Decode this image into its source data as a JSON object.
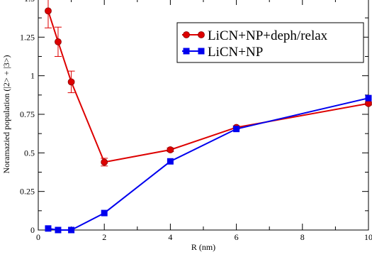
{
  "chart_data": {
    "type": "line",
    "title": "",
    "xlabel": "R (nm)",
    "ylabel": "Noramazied population (|2> + |3>)",
    "xlim": [
      0,
      10
    ],
    "ylim": [
      0,
      1.5
    ],
    "xticks": [
      "0",
      "2",
      "4",
      "6",
      "8",
      "10"
    ],
    "yticks": [
      "0",
      "0.25",
      "0.5",
      "0.75",
      "1",
      "1.25",
      "1.5"
    ],
    "grid": false,
    "legend_position": "top-right",
    "series": [
      {
        "name": "LiCN+NP+deph/relax",
        "color": "#dd0000",
        "marker": "circle",
        "x": [
          0.3,
          0.6,
          1.0,
          2.0,
          4.0,
          6.0,
          10.0
        ],
        "y": [
          1.42,
          1.22,
          0.96,
          0.44,
          0.52,
          0.665,
          0.82
        ],
        "err": [
          0.11,
          0.095,
          0.07,
          0.025,
          0.012,
          0.01,
          0.01
        ]
      },
      {
        "name": "LiCN+NP",
        "color": "#0000ee",
        "marker": "square",
        "x": [
          0.3,
          0.6,
          1.0,
          2.0,
          4.0,
          6.0,
          10.0
        ],
        "y": [
          0.01,
          0.0,
          0.0,
          0.11,
          0.445,
          0.655,
          0.855
        ]
      }
    ]
  }
}
